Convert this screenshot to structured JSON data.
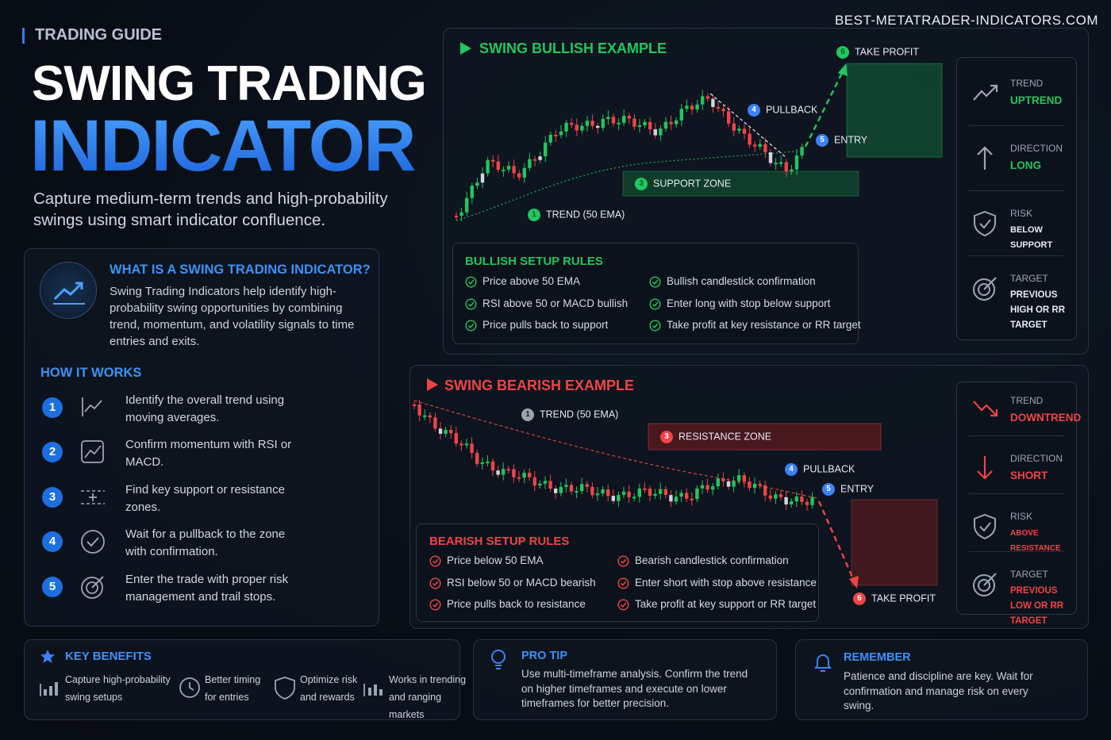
{
  "watermark": "BEST-METATRADER-INDICATORS.COM",
  "header": {
    "kicker": "TRADING GUIDE",
    "title_line1": "SWING TRADING",
    "title_line2": "INDICATOR",
    "subtitle": "Capture medium-term trends and high-probability swings using smart indicator confluence."
  },
  "intro": {
    "title": "WHAT IS A SWING TRADING INDICATOR?",
    "text": "Swing Trading Indicators help identify high-probability swing opportunities by combining trend, momentum, and volatility signals to time entries and exits."
  },
  "how_it_works": {
    "title": "HOW IT WORKS",
    "steps": [
      {
        "number": "1",
        "text": "Identify the overall trend using moving averages."
      },
      {
        "number": "2",
        "text": "Confirm momentum with RSI or MACD."
      },
      {
        "number": "3",
        "text": "Find key support or resistance zones."
      },
      {
        "number": "4",
        "text": "Wait for a pullback to the zone with confirmation."
      },
      {
        "number": "5",
        "text": "Enter the trade with proper risk management and trail stops."
      }
    ]
  },
  "bullish": {
    "title": "SWING BULLISH EXAMPLE",
    "labels": [
      {
        "number": "1",
        "text": "TREND (50 EMA)"
      },
      {
        "number": "3",
        "text": "SUPPORT ZONE"
      },
      {
        "number": "4",
        "text": "PULLBACK"
      },
      {
        "number": "5",
        "text": "ENTRY"
      },
      {
        "number": "6",
        "text": "TAKE PROFIT"
      }
    ],
    "rules_title": "BULLISH SETUP RULES",
    "rules": [
      "Price above 50 EMA",
      "RSI above 50 or MACD bullish",
      "Price pulls back to support",
      "Bullish candlestick confirmation",
      "Enter long with stop below support",
      "Take profit at key resistance or RR target"
    ],
    "summary": [
      {
        "label": "TREND",
        "value": "UPTREND"
      },
      {
        "label": "DIRECTION",
        "value": "LONG"
      },
      {
        "label": "RISK",
        "value": "BELOW SUPPORT"
      },
      {
        "label": "TARGET",
        "value": "PREVIOUS HIGH OR RR TARGET"
      }
    ]
  },
  "bearish": {
    "title": "SWING BEARISH EXAMPLE",
    "labels": [
      {
        "number": "1",
        "text": "TREND (50 EMA)"
      },
      {
        "number": "3",
        "text": "RESISTANCE ZONE"
      },
      {
        "number": "4",
        "text": "PULLBACK"
      },
      {
        "number": "5",
        "text": "ENTRY"
      },
      {
        "number": "6",
        "text": "TAKE PROFIT"
      }
    ],
    "rules_title": "BEARISH SETUP RULES",
    "rules": [
      "Price below 50 EMA",
      "RSI below 50 or MACD bearish",
      "Price pulls back to resistance",
      "Bearish candlestick confirmation",
      "Enter short with stop above resistance",
      "Take profit at key support or RR target"
    ],
    "summary": [
      {
        "label": "TREND",
        "value": "DOWNTREND"
      },
      {
        "label": "DIRECTION",
        "value": "SHORT"
      },
      {
        "label": "RISK",
        "value": "ABOVE RESISTANCE"
      },
      {
        "label": "TARGET",
        "value": "PREVIOUS LOW OR RR TARGET"
      }
    ]
  },
  "footer": {
    "benefits": {
      "title": "KEY BENEFITS",
      "items": [
        "Capture high-probability swing setups",
        "Better timing for entries",
        "Optimize risk and rewards",
        "Works in trending and ranging markets"
      ]
    },
    "pro_tip": {
      "title": "PRO TIP",
      "text": "Use multi-timeframe analysis. Confirm the trend on higher timeframes and execute on lower timeframes for better precision."
    },
    "remember": {
      "title": "REMEMBER",
      "text": "Patience and discipline are key. Wait for confirmation and manage risk on every swing."
    }
  }
}
